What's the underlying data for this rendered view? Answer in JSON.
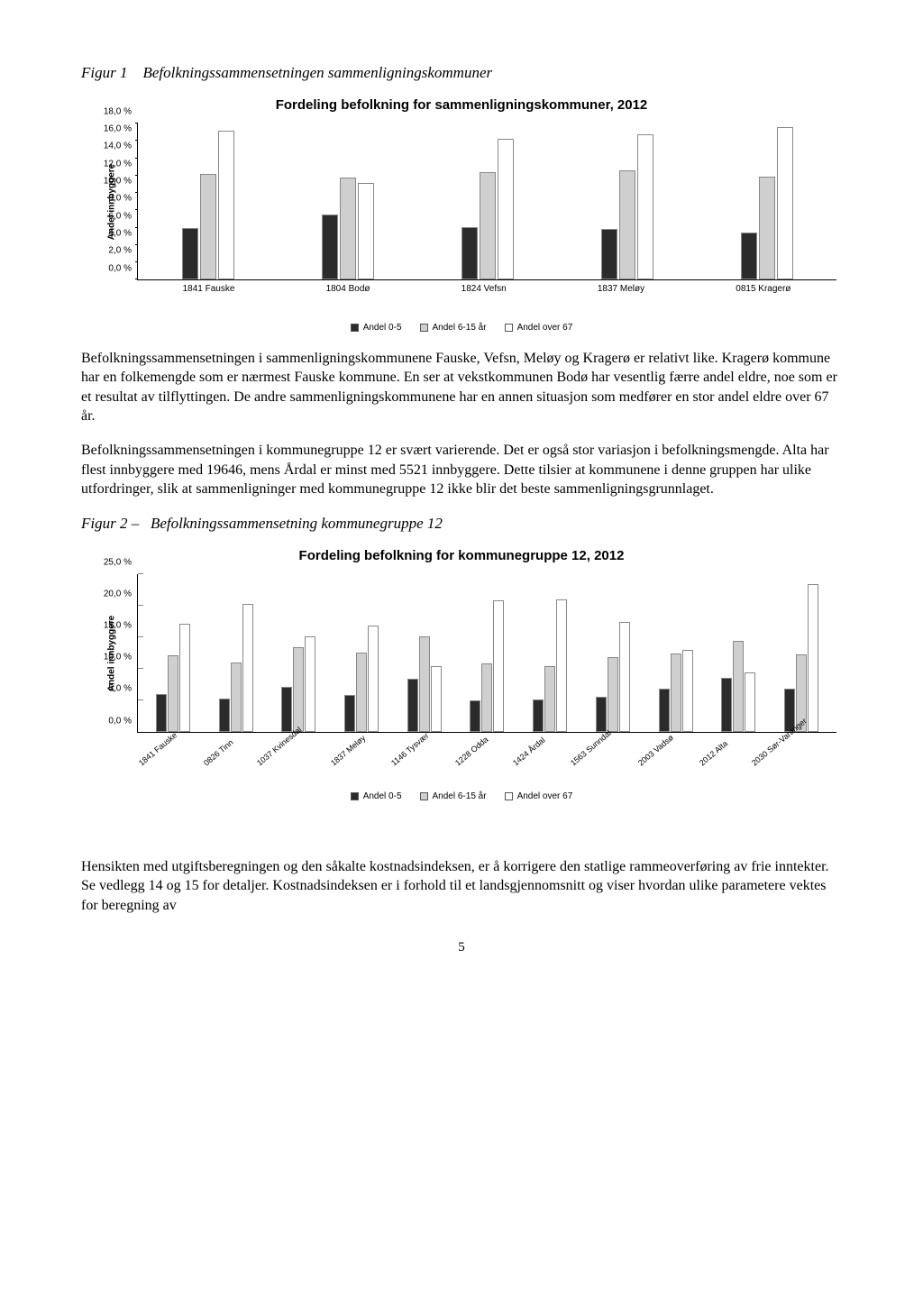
{
  "figure1": {
    "caption_label": "Figur 1",
    "caption_text": "Befolkningssammensetningen sammenligningskommuner",
    "chart_title": "Fordeling befolkning for sammenligningskommuner, 2012",
    "y_axis_label": "Andel innbyggere",
    "type": "grouped-bar",
    "ylim": [
      0,
      18
    ],
    "ytick_step": 2,
    "ytick_labels": [
      "0,0 %",
      "2,0 %",
      "4,0 %",
      "6,0 %",
      "8,0 %",
      "10,0 %",
      "12,0 %",
      "14,0 %",
      "16,0 %",
      "18,0 %"
    ],
    "categories": [
      "1841 Fauske",
      "1804 Bodø",
      "1824 Vefsn",
      "1837 Meløy",
      "0815 Kragerø"
    ],
    "series": [
      {
        "name": "Andel 0-5",
        "color": "#2b2b2b",
        "values": [
          6.0,
          7.5,
          6.1,
          5.8,
          5.4
        ]
      },
      {
        "name": "Andel 6-15 år",
        "color": "#cfcfcf",
        "values": [
          12.2,
          11.8,
          12.4,
          12.6,
          11.9
        ]
      },
      {
        "name": "Andel over 67",
        "color": "#ffffff",
        "values": [
          17.2,
          11.2,
          16.3,
          16.8,
          17.6
        ]
      }
    ],
    "label_fontsize": 10,
    "title_fontsize": 15,
    "background_color": "#ffffff",
    "bar_border_color": "#888888"
  },
  "paragraph1": "Befolkningssammensetningen i sammenligningskommunene Fauske, Vefsn, Meløy og Kragerø er relativt like. Kragerø kommune har en folkemengde som er nærmest Fauske kommune. En ser at vekstkommunen Bodø har vesentlig færre andel eldre, noe som er et resultat av tilflyttingen. De andre sammenligningskommunene har en annen situasjon som medfører en stor andel eldre over 67 år.",
  "paragraph2": "Befolkningssammensetningen i kommunegruppe 12 er svært varierende. Det er også stor variasjon i befolkningsmengde. Alta har flest innbyggere med 19646, mens Årdal er minst med 5521 innbyggere. Dette tilsier at kommunene i denne gruppen har ulike utfordringer, slik at sammenligninger med kommunegruppe 12 ikke blir det beste sammenligningsgrunnlaget.",
  "figure2": {
    "caption_label": "Figur 2 –",
    "caption_text": "Befolkningssammensetning kommunegruppe 12",
    "chart_title": "Fordeling befolkning for kommunegruppe 12, 2012",
    "y_axis_label": "Andel innbyggere",
    "type": "grouped-bar",
    "ylim": [
      0,
      25
    ],
    "ytick_step": 5,
    "ytick_labels": [
      "0,0 %",
      "5,0 %",
      "10,0 %",
      "15,0 %",
      "20,0 %",
      "25,0 %"
    ],
    "categories": [
      "1841 Fauske",
      "0826 Tinn",
      "1037 Kvinesdal",
      "1837 Meløy",
      "1146 Tysvær",
      "1228 Odda",
      "1424 Årdal",
      "1563 Sunndal",
      "2003 Vadsø",
      "2012 Alta",
      "2030 Sør-Varanger"
    ],
    "series": [
      {
        "name": "Andel 0-5",
        "color": "#2b2b2b",
        "values": [
          6.0,
          5.3,
          7.1,
          5.8,
          8.5,
          5.0,
          5.2,
          5.6,
          6.8,
          8.6,
          6.9
        ]
      },
      {
        "name": "Andel 6-15 år",
        "color": "#cfcfcf",
        "values": [
          12.2,
          11.0,
          13.5,
          12.6,
          15.2,
          10.8,
          10.5,
          11.8,
          12.5,
          14.5,
          12.3
        ]
      },
      {
        "name": "Andel over 67",
        "color": "#ffffff",
        "values": [
          17.2,
          20.3,
          15.2,
          16.8,
          10.5,
          20.8,
          21.0,
          17.5,
          13.0,
          9.5,
          23.5
        ]
      }
    ],
    "label_fontsize": 10,
    "title_fontsize": 15,
    "background_color": "#ffffff",
    "bar_border_color": "#888888"
  },
  "legend": {
    "items": [
      {
        "label": "Andel 0-5",
        "color": "#2b2b2b"
      },
      {
        "label": "Andel 6-15 år",
        "color": "#cfcfcf"
      },
      {
        "label": "Andel over 67",
        "color": "#ffffff"
      }
    ]
  },
  "paragraph3": "Hensikten med utgiftsberegningen og den såkalte kostnadsindeksen, er å korrigere den statlige rammeoverføring av frie inntekter. Se vedlegg 14 og 15 for detaljer. Kostnadsindeksen er i forhold til et landsgjennomsnitt og viser hvordan ulike parametere vektes for beregning av",
  "page_number": "5"
}
